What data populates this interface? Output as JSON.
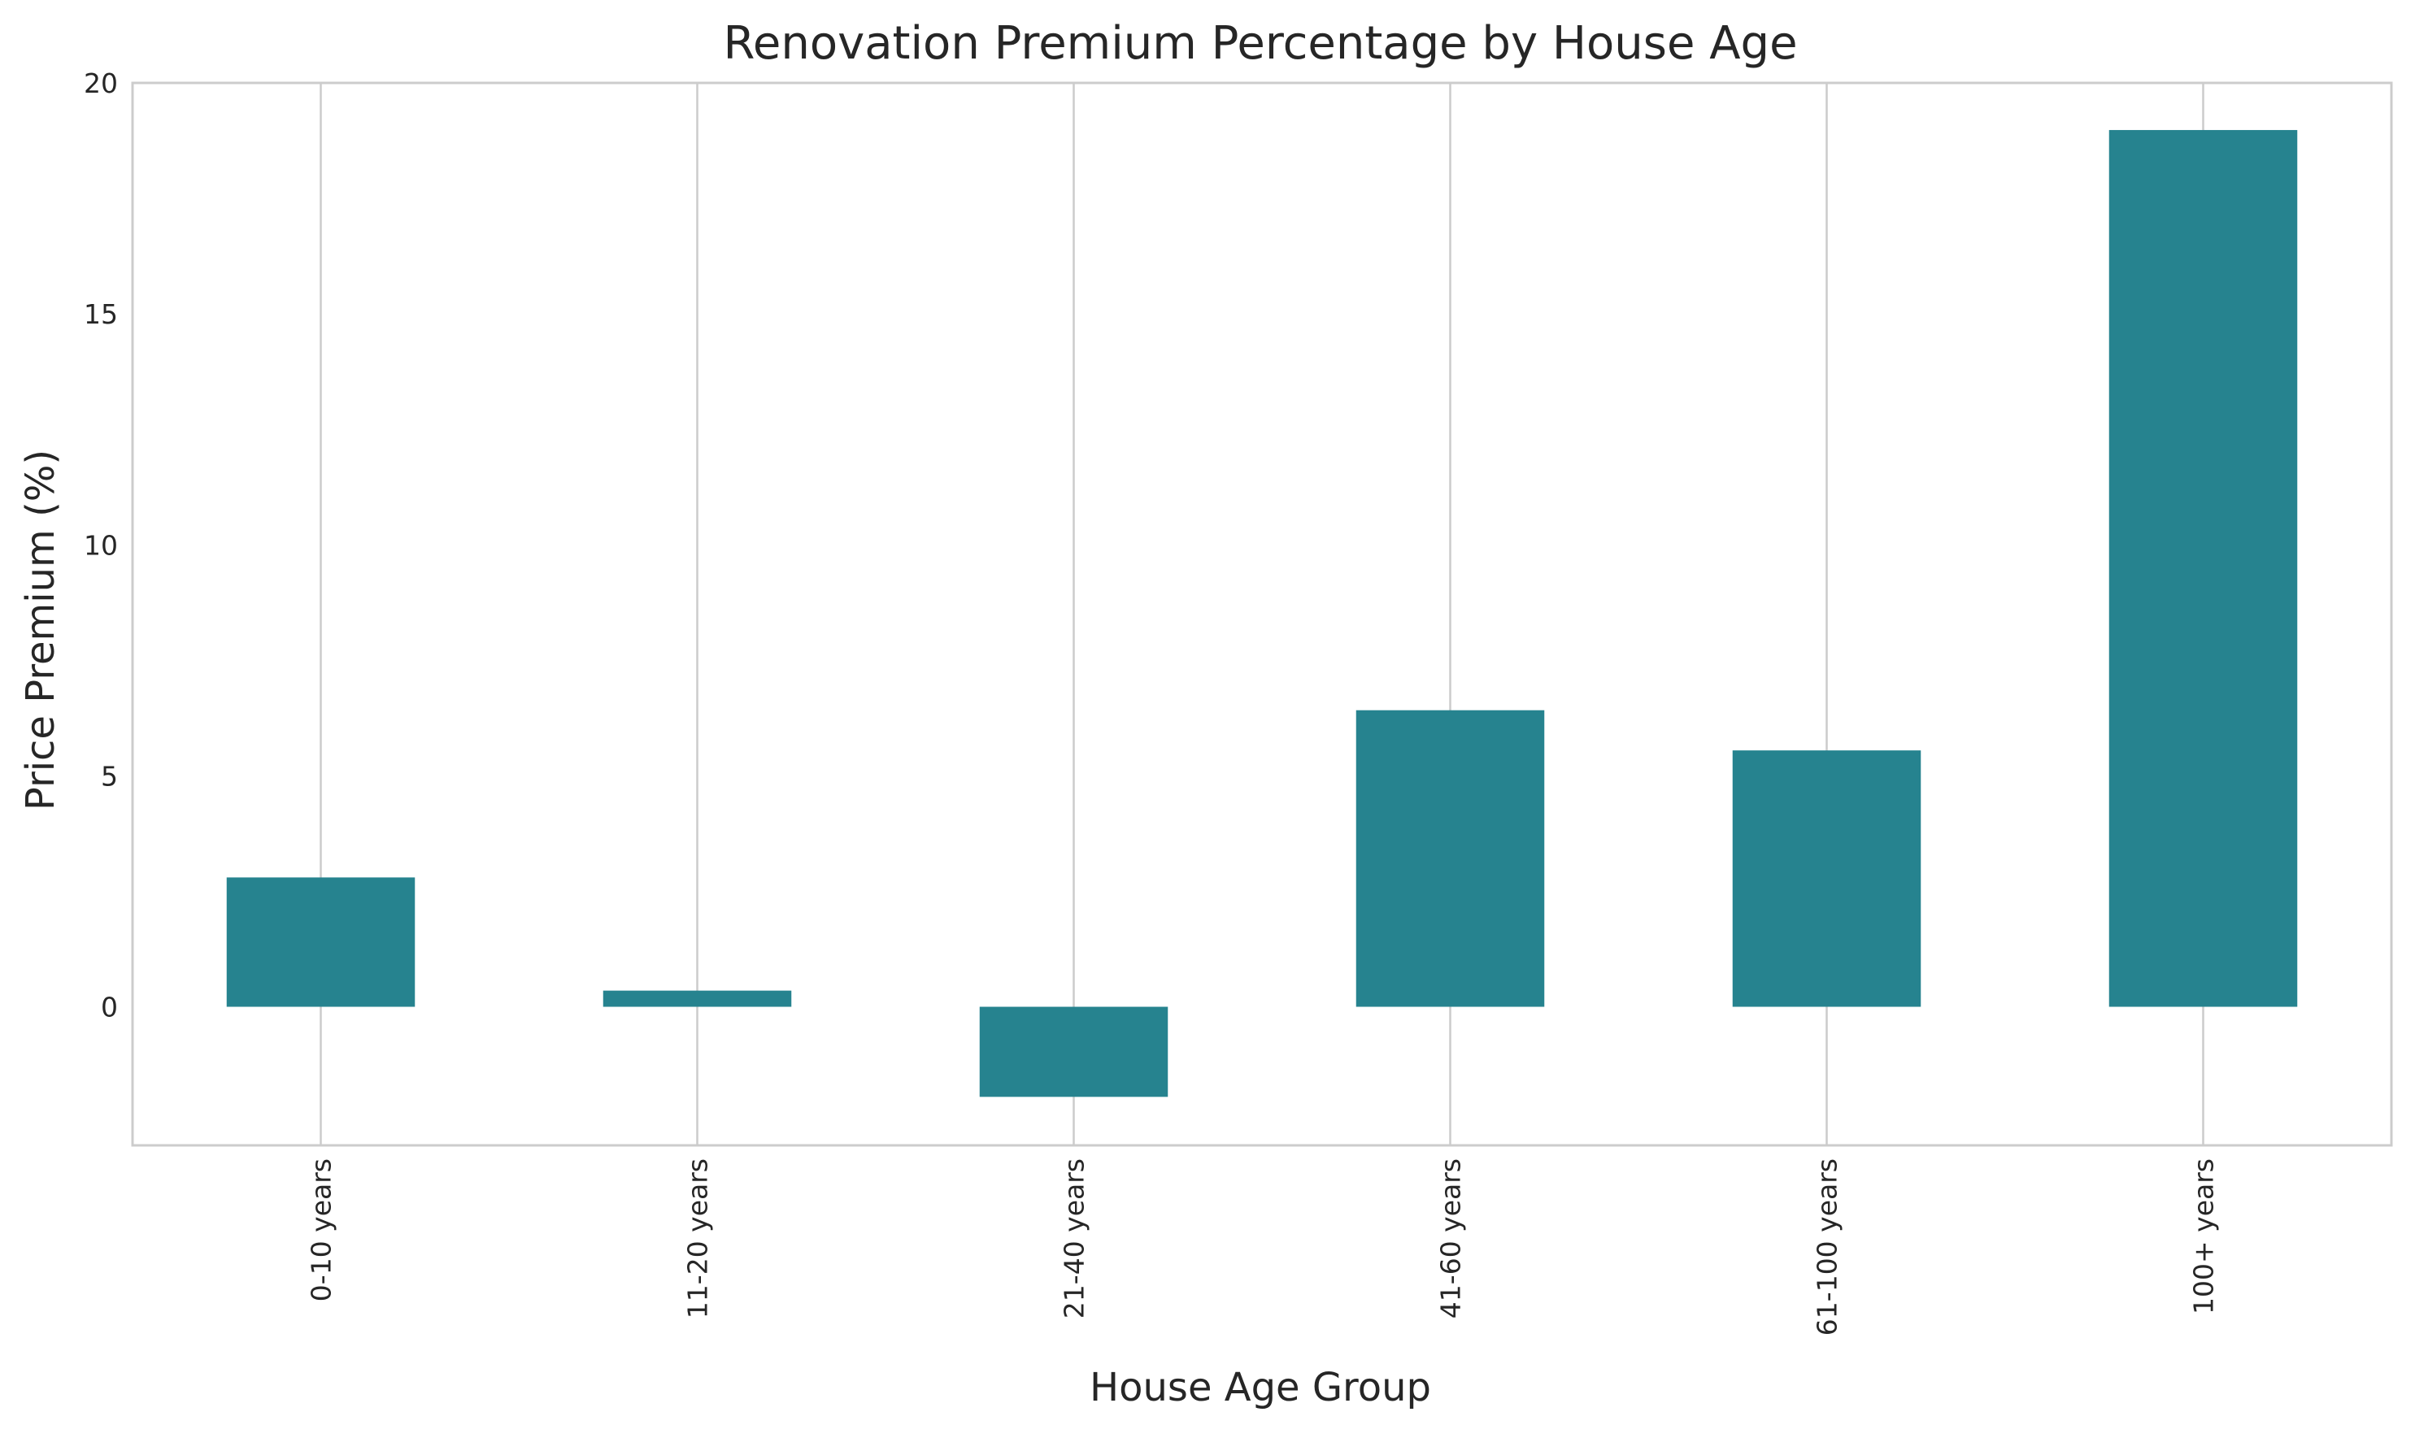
{
  "chart_data": {
    "type": "bar",
    "title": "Renovation Premium Percentage by House Age",
    "xlabel": "House Age Group",
    "ylabel": "Price Premium (%)",
    "categories": [
      "0-10 years",
      "11-20 years",
      "21-40 years",
      "41-60 years",
      "61-100 years",
      "100+ years"
    ],
    "values": [
      2.8,
      0.35,
      -1.95,
      6.42,
      5.55,
      18.98
    ],
    "ylim": [
      -3,
      20
    ],
    "yticks": [
      0,
      5,
      10,
      15,
      20
    ],
    "grid": "vertical",
    "bar_color": "#26838f",
    "grid_color": "#cccccc",
    "frame_color": "#cccccc",
    "text_color": "#262626"
  }
}
